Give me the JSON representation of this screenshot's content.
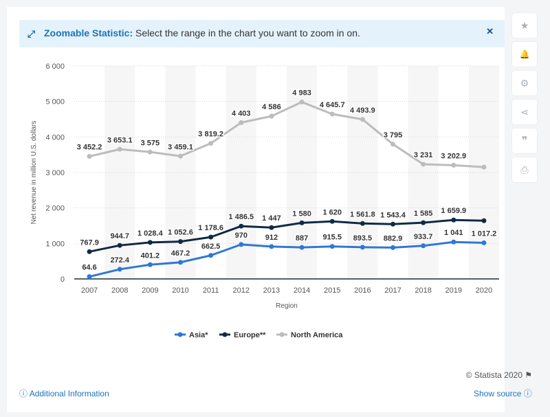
{
  "banner": {
    "title": "Zoomable Statistic:",
    "text": " Select the range in the chart you want to zoom in on."
  },
  "side_buttons": [
    "star-icon",
    "bell-icon",
    "gear-icon",
    "share-icon",
    "quote-icon",
    "print-icon"
  ],
  "side_glyphs": [
    "★",
    "🔔",
    "⚙",
    "⋖",
    "❞",
    "⎙"
  ],
  "footer": {
    "copyright": "© Statista 2020",
    "additional_info": "Additional Information",
    "show_source": "Show source"
  },
  "colors": {
    "asia": "#2f78d4",
    "europe": "#0f2a44",
    "north_america": "#bcbcbc",
    "accent": "#1a73b9"
  },
  "chart_data": {
    "type": "line",
    "xlabel": "Region",
    "ylabel": "Net revenue in million U.S. dollars",
    "ylim": [
      0,
      6000
    ],
    "yticks": [
      0,
      1000,
      2000,
      3000,
      4000,
      5000,
      6000
    ],
    "ytick_labels": [
      "0",
      "1 000",
      "2 000",
      "3 000",
      "4 000",
      "5 000",
      "6 000"
    ],
    "categories": [
      "2007",
      "2008",
      "2009",
      "2010",
      "2011",
      "2012",
      "2013",
      "2014",
      "2015",
      "2016",
      "2017",
      "2018",
      "2019",
      "2020"
    ],
    "legend_position": "bottom",
    "grid": true,
    "series": [
      {
        "name": "Asia*",
        "color": "#2f78d4",
        "values": [
          64.6,
          272.4,
          401.2,
          467.2,
          662.5,
          970,
          912,
          887,
          915.5,
          893.5,
          882.9,
          933.7,
          1041,
          1017.2
        ],
        "labels": [
          "64.6",
          "272.4",
          "401.2",
          "467.2",
          "662.5",
          "970",
          "912",
          "887",
          "915.5",
          "893.5",
          "882.9",
          "933.7",
          "1 041",
          "1 017.2"
        ]
      },
      {
        "name": "Europe**",
        "color": "#0f2a44",
        "values": [
          767.9,
          944.7,
          1028.4,
          1052.6,
          1178.6,
          1486.5,
          1447,
          1580,
          1620,
          1561.8,
          1543.4,
          1585,
          1659.9,
          1640
        ],
        "labels": [
          "767.9",
          "944.7",
          "1 028.4",
          "1 052.6",
          "1 178.6",
          "1 486.5",
          "1 447",
          "1 580",
          "1 620",
          "1 561.8",
          "1 543.4",
          "1 585",
          "1 659.9",
          ""
        ]
      },
      {
        "name": "North America",
        "color": "#bcbcbc",
        "values": [
          3452.2,
          3653.1,
          3575,
          3459.1,
          3819.2,
          4403,
          4586,
          4983,
          4645.7,
          4493.9,
          3795,
          3231,
          3202.9,
          3150
        ],
        "labels": [
          "3 452.2",
          "3 653.1",
          "3 575",
          "3 459.1",
          "3 819.2",
          "4 403",
          "4 586",
          "4 983",
          "4 645.7",
          "4 493.9",
          "3 795",
          "3 231",
          "3 202.9",
          ""
        ]
      }
    ]
  }
}
